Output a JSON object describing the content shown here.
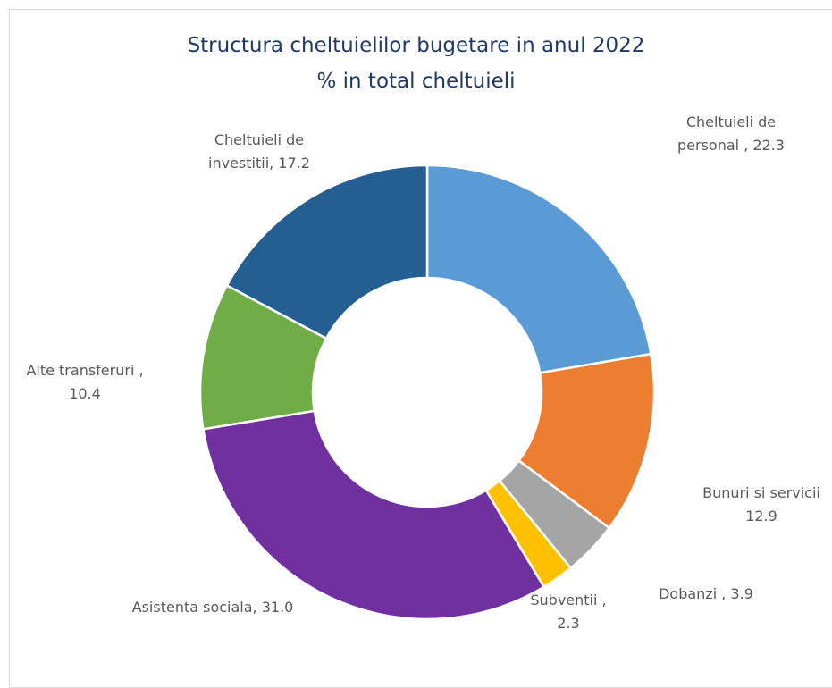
{
  "chart_data": {
    "type": "doughnut",
    "title": "Structura cheltuielilor bugetare in anul 2022",
    "subtitle": "% in total cheltuieli",
    "categories": [
      "Cheltuieli de personal ,",
      "Bunuri si servicii",
      "Dobanzi ,",
      "Subventii ,",
      "Asistenta sociala,",
      "Alte transferuri ,",
      "Cheltuieli de investitii,"
    ],
    "values": [
      22.3,
      12.9,
      3.9,
      2.3,
      31.0,
      10.4,
      17.2
    ],
    "value_labels": [
      "22.3",
      "12.9",
      "3.9",
      "2.3",
      "31.0",
      "10.4",
      "17.2"
    ],
    "colors": [
      "#5b9bd5",
      "#ed7d31",
      "#a5a5a5",
      "#ffc000",
      "#7030a0",
      "#70ad47",
      "#255e91"
    ]
  }
}
